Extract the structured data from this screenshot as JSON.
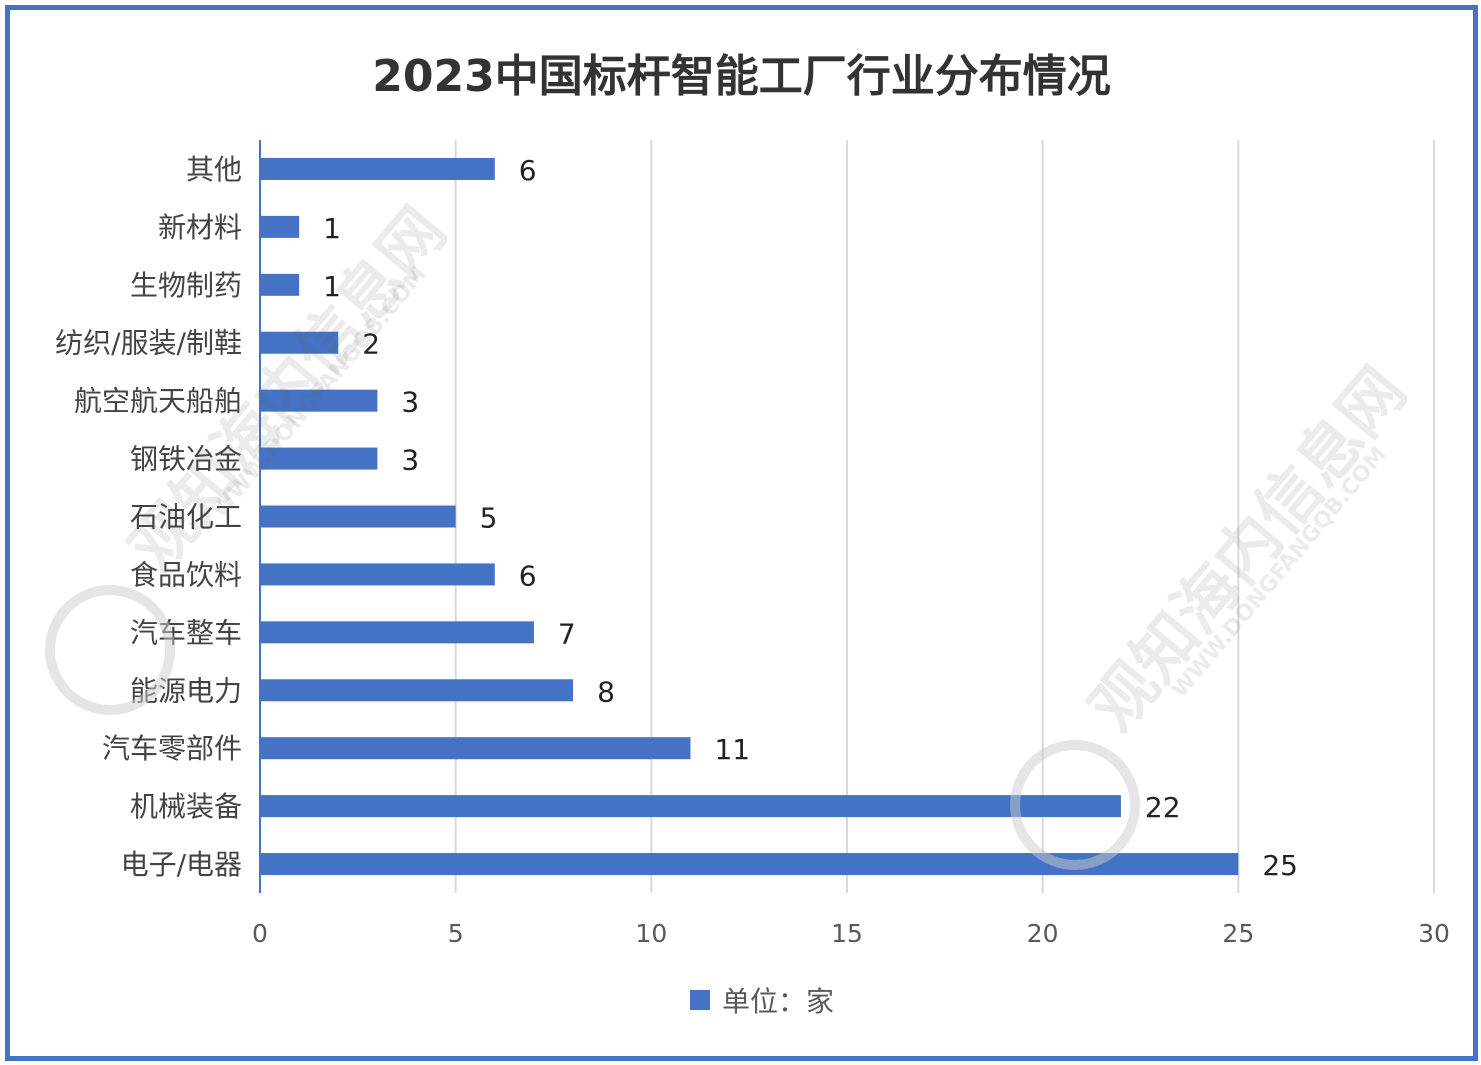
{
  "chart_data": {
    "type": "bar",
    "orientation": "horizontal",
    "title": "2023中国标杆智能工厂行业分布情况",
    "categories": [
      "其他",
      "新材料",
      "生物制药",
      "纺织/服装/制鞋",
      "航空航天船舶",
      "钢铁冶金",
      "石油化工",
      "食品饮料",
      "汽车整车",
      "能源电力",
      "汽车零部件",
      "机械装备",
      "电子/电器"
    ],
    "series": [
      {
        "name": "单位：家",
        "values": [
          6,
          1,
          1,
          2,
          3,
          3,
          5,
          6,
          7,
          8,
          11,
          22,
          25
        ],
        "color": "#4472c4"
      }
    ],
    "xlim": [
      0,
      30
    ],
    "xticks": [
      0,
      5,
      10,
      15,
      20,
      25,
      30
    ],
    "grid": true,
    "legend_position": "bottom",
    "data_labels": true
  },
  "watermark": {
    "text": "观知海内信息网",
    "url": "WWW.DONGFANGQB.COM"
  }
}
